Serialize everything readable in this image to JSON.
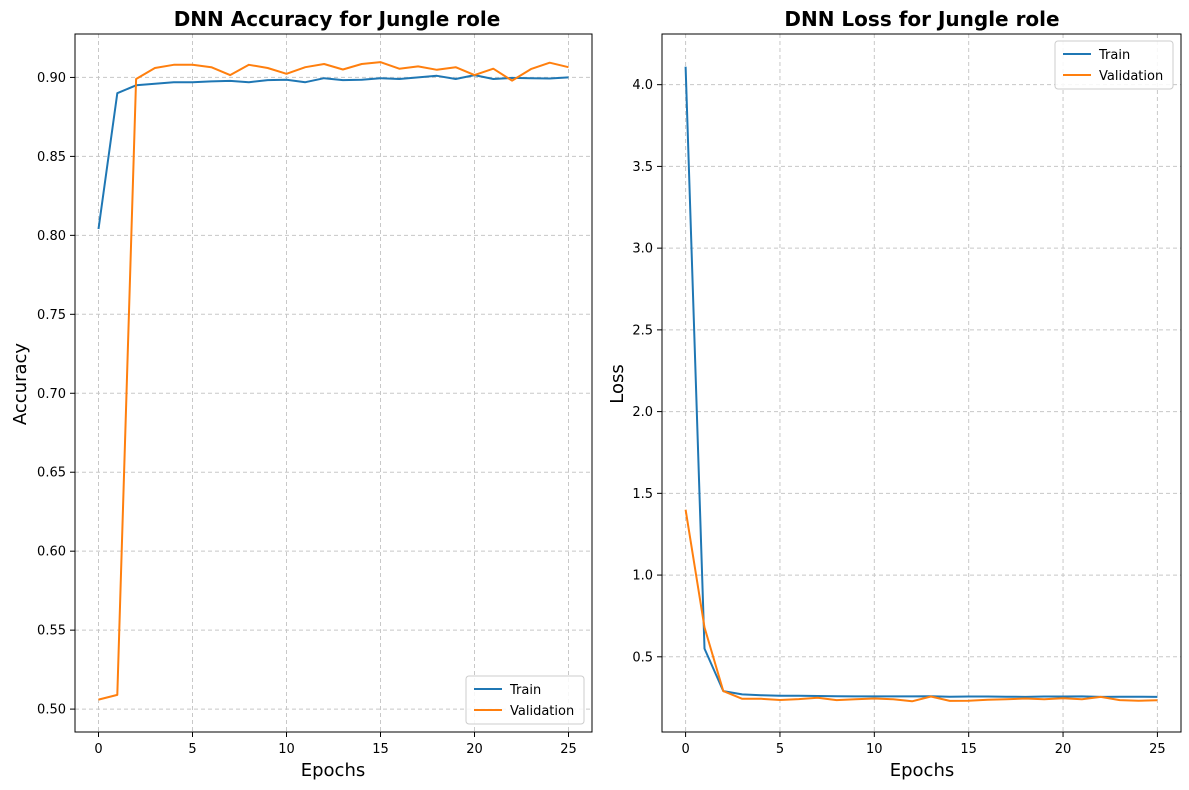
{
  "chart_data": [
    {
      "type": "line",
      "title": "DNN Accuracy for Jungle role",
      "xlabel": "Epochs",
      "ylabel": "Accuracy",
      "xlim": [
        -1.25,
        26.25
      ],
      "ylim": [
        0.4855,
        0.9275
      ],
      "xticks": [
        0,
        5,
        10,
        15,
        20,
        25
      ],
      "yticks": [
        0.5,
        0.55,
        0.6,
        0.65,
        0.7,
        0.75,
        0.8,
        0.85,
        0.9
      ],
      "ytick_labels": [
        "0.50",
        "0.55",
        "0.60",
        "0.65",
        "0.70",
        "0.75",
        "0.80",
        "0.85",
        "0.90"
      ],
      "grid": true,
      "legend": "lower right",
      "x": [
        0,
        1,
        2,
        3,
        4,
        5,
        6,
        7,
        8,
        9,
        10,
        11,
        12,
        13,
        14,
        15,
        16,
        17,
        18,
        19,
        20,
        21,
        22,
        23,
        24,
        25
      ],
      "series": [
        {
          "name": "Train",
          "color": "#1f77b4",
          "values": [
            0.804,
            0.89,
            0.895,
            0.896,
            0.897,
            0.897,
            0.8975,
            0.8978,
            0.897,
            0.8983,
            0.8985,
            0.897,
            0.8995,
            0.8983,
            0.8985,
            0.8995,
            0.899,
            0.9,
            0.901,
            0.899,
            0.9015,
            0.899,
            0.8997,
            0.8995,
            0.8993,
            0.9
          ]
        },
        {
          "name": "Validation",
          "color": "#ff7f0e",
          "values": [
            0.506,
            0.509,
            0.899,
            0.906,
            0.908,
            0.908,
            0.9065,
            0.9015,
            0.908,
            0.906,
            0.9023,
            0.9065,
            0.9085,
            0.905,
            0.9085,
            0.9097,
            0.9055,
            0.907,
            0.9048,
            0.9065,
            0.9015,
            0.9055,
            0.898,
            0.9053,
            0.9093,
            0.9065
          ]
        }
      ]
    },
    {
      "type": "line",
      "title": "DNN Loss for Jungle role",
      "xlabel": "Epochs",
      "ylabel": "Loss",
      "xlim": [
        -1.25,
        26.25
      ],
      "ylim": [
        0.04,
        4.31
      ],
      "xticks": [
        0,
        5,
        10,
        15,
        20,
        25
      ],
      "yticks": [
        0.5,
        1.0,
        1.5,
        2.0,
        2.5,
        3.0,
        3.5,
        4.0
      ],
      "ytick_labels": [
        "0.5",
        "1.0",
        "1.5",
        "2.0",
        "2.5",
        "3.0",
        "3.5",
        "4.0"
      ],
      "grid": true,
      "legend": "upper right",
      "x": [
        0,
        1,
        2,
        3,
        4,
        5,
        6,
        7,
        8,
        9,
        10,
        11,
        12,
        13,
        14,
        15,
        16,
        17,
        18,
        19,
        20,
        21,
        22,
        23,
        24,
        25
      ],
      "series": [
        {
          "name": "Train",
          "color": "#1f77b4",
          "values": [
            4.11,
            0.55,
            0.29,
            0.27,
            0.265,
            0.262,
            0.262,
            0.26,
            0.259,
            0.258,
            0.258,
            0.258,
            0.258,
            0.259,
            0.256,
            0.257,
            0.257,
            0.256,
            0.255,
            0.257,
            0.257,
            0.258,
            0.255,
            0.256,
            0.256,
            0.255
          ]
        },
        {
          "name": "Validation",
          "color": "#ff7f0e",
          "values": [
            1.4,
            0.68,
            0.29,
            0.243,
            0.243,
            0.236,
            0.241,
            0.25,
            0.235,
            0.24,
            0.245,
            0.24,
            0.228,
            0.257,
            0.23,
            0.231,
            0.237,
            0.24,
            0.245,
            0.24,
            0.246,
            0.24,
            0.255,
            0.235,
            0.231,
            0.234
          ]
        }
      ]
    }
  ]
}
